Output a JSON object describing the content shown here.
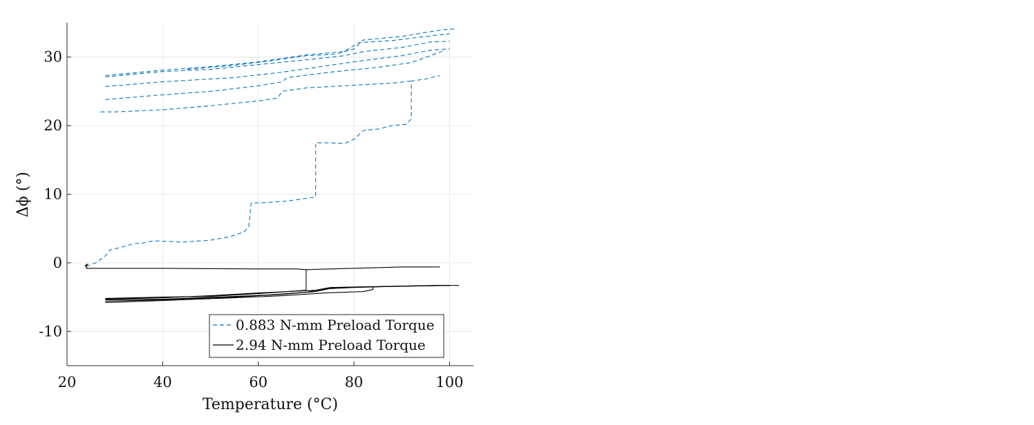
{
  "chart_data": {
    "type": "line",
    "title": "",
    "xlabel": "Temperature (°C)",
    "ylabel": "Δϕ (°)",
    "xlim": [
      20,
      105
    ],
    "ylim": [
      -15,
      35
    ],
    "xticks": [
      20,
      40,
      60,
      80,
      100
    ],
    "yticks": [
      -10,
      0,
      10,
      20,
      30
    ],
    "xtick_labels": [
      "20",
      "40",
      "60",
      "80",
      "100"
    ],
    "ytick_labels": [
      "-10",
      "0",
      "10",
      "20",
      "30"
    ],
    "grid": true,
    "legend_position": "bottom-right",
    "colors": {
      "series_1": "#0072BD",
      "series_2": "#000000",
      "grid": "#e6e6e6",
      "axis": "#262626"
    },
    "series": [
      {
        "name": "0.883 N-mm Preload Torque",
        "line_style": "dashed",
        "segments": [
          [
            [
              24,
              -0.5
            ],
            [
              26,
              0
            ],
            [
              28,
              1
            ],
            [
              29,
              1.9
            ],
            [
              31,
              2.2
            ],
            [
              34,
              2.8
            ],
            [
              36,
              2.9
            ],
            [
              38,
              3.2
            ],
            [
              42,
              3.1
            ],
            [
              44,
              3.0
            ],
            [
              50,
              3.3
            ],
            [
              54,
              3.8
            ],
            [
              57,
              4.5
            ],
            [
              58,
              5.2
            ],
            [
              58.5,
              8.7
            ],
            [
              62,
              8.8
            ],
            [
              66,
              9.0
            ],
            [
              70,
              9.4
            ],
            [
              72,
              9.6
            ],
            [
              72,
              17.5
            ],
            [
              74,
              17.5
            ],
            [
              78,
              17.4
            ],
            [
              80,
              18.0
            ],
            [
              82,
              19.3
            ],
            [
              85,
              19.5
            ],
            [
              88,
              20.0
            ],
            [
              91,
              20.2
            ],
            [
              92,
              21.0
            ],
            [
              92,
              26.5
            ],
            [
              95,
              26.8
            ],
            [
              98,
              27.3
            ]
          ],
          [
            [
              27,
              22.0
            ],
            [
              30,
              22.0
            ],
            [
              40,
              22.3
            ],
            [
              50,
              22.9
            ],
            [
              60,
              23.6
            ],
            [
              64,
              24.0
            ],
            [
              65,
              25.0
            ],
            [
              70,
              25.5
            ],
            [
              80,
              25.9
            ],
            [
              88,
              26.2
            ],
            [
              92,
              26.5
            ]
          ],
          [
            [
              28,
              23.8
            ],
            [
              40,
              24.5
            ],
            [
              50,
              25.0
            ],
            [
              60,
              25.8
            ],
            [
              65,
              26.4
            ],
            [
              66,
              27.0
            ],
            [
              75,
              27.8
            ],
            [
              85,
              28.5
            ],
            [
              92,
              29.2
            ],
            [
              96,
              30.2
            ],
            [
              99,
              31.0
            ]
          ],
          [
            [
              28,
              25.7
            ],
            [
              40,
              26.4
            ],
            [
              55,
              27.0
            ],
            [
              65,
              27.8
            ],
            [
              75,
              28.8
            ],
            [
              82,
              29.5
            ],
            [
              90,
              30.2
            ],
            [
              96,
              31.0
            ],
            [
              100,
              31.2
            ]
          ],
          [
            [
              28,
              27.1
            ],
            [
              40,
              27.9
            ],
            [
              50,
              28.2
            ],
            [
              60,
              28.9
            ],
            [
              70,
              29.6
            ],
            [
              78,
              30.2
            ],
            [
              82,
              30.8
            ],
            [
              90,
              31.4
            ],
            [
              96,
              32.2
            ],
            [
              100,
              32.3
            ]
          ],
          [
            [
              28,
              27.3
            ],
            [
              40,
              28.1
            ],
            [
              50,
              28.6
            ],
            [
              60,
              29.3
            ],
            [
              70,
              30.3
            ],
            [
              78,
              30.8
            ],
            [
              81,
              32.1
            ],
            [
              88,
              32.4
            ],
            [
              95,
              33.0
            ],
            [
              100,
              33.4
            ]
          ],
          [
            [
              45,
              28.2
            ],
            [
              55,
              28.8
            ],
            [
              62,
              29.4
            ],
            [
              70,
              30.2
            ],
            [
              76,
              30.4
            ],
            [
              80,
              31.2
            ],
            [
              82,
              32.5
            ],
            [
              90,
              33.0
            ],
            [
              95,
              33.6
            ],
            [
              99,
              34.0
            ],
            [
              101,
              34.1
            ]
          ]
        ]
      },
      {
        "name": "2.94 N-mm Preload Torque",
        "line_style": "solid",
        "segments": [
          [
            [
              24,
              -0.6
            ],
            [
              24.3,
              -0.2
            ],
            [
              23.8,
              -0.4
            ],
            [
              24.2,
              -0.8
            ]
          ],
          [
            [
              24,
              -0.8
            ],
            [
              40,
              -0.8
            ],
            [
              60,
              -0.9
            ],
            [
              68,
              -0.9
            ],
            [
              70,
              -1.0
            ],
            [
              80,
              -0.8
            ],
            [
              90,
              -0.6
            ],
            [
              98,
              -0.6
            ]
          ],
          [
            [
              70,
              -1.0
            ],
            [
              70,
              -4.0
            ],
            [
              60,
              -4.5
            ],
            [
              50,
              -4.9
            ],
            [
              40,
              -5.0
            ],
            [
              28,
              -5.2
            ]
          ],
          [
            [
              28,
              -5.3
            ],
            [
              40,
              -5.1
            ],
            [
              50,
              -4.8
            ],
            [
              60,
              -4.4
            ],
            [
              72,
              -4.0
            ],
            [
              75,
              -3.6
            ],
            [
              82,
              -3.5
            ],
            [
              90,
              -3.4
            ],
            [
              98,
              -3.3
            ],
            [
              102,
              -3.3
            ]
          ],
          [
            [
              28,
              -5.4
            ],
            [
              40,
              -5.3
            ],
            [
              52,
              -5.0
            ],
            [
              62,
              -4.7
            ],
            [
              70,
              -4.3
            ],
            [
              74,
              -3.8
            ],
            [
              80,
              -3.6
            ],
            [
              90,
              -3.4
            ],
            [
              98,
              -3.3
            ]
          ],
          [
            [
              28,
              -5.6
            ],
            [
              40,
              -5.4
            ],
            [
              55,
              -5.0
            ],
            [
              65,
              -4.6
            ],
            [
              72,
              -4.2
            ],
            [
              76,
              -3.6
            ],
            [
              84,
              -3.5
            ],
            [
              90,
              -3.4
            ],
            [
              100,
              -3.3
            ]
          ],
          [
            [
              28,
              -5.8
            ],
            [
              40,
              -5.5
            ],
            [
              55,
              -5.1
            ],
            [
              65,
              -4.8
            ],
            [
              74,
              -4.4
            ],
            [
              82,
              -4.2
            ],
            [
              84,
              -3.9
            ],
            [
              84,
              -3.5
            ],
            [
              92,
              -3.4
            ],
            [
              100,
              -3.3
            ]
          ]
        ]
      }
    ]
  }
}
